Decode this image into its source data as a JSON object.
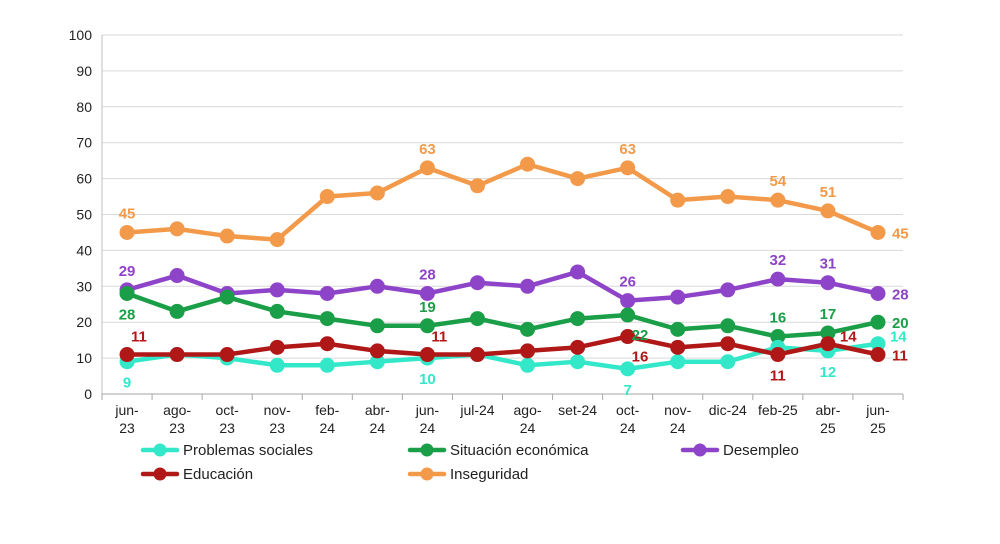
{
  "chart_data": {
    "type": "line",
    "title": "",
    "xlabel": "",
    "ylabel": "",
    "ylim": [
      0,
      100
    ],
    "yticks": [
      0,
      10,
      20,
      30,
      40,
      50,
      60,
      70,
      80,
      90,
      100
    ],
    "grid": true,
    "legend_position": "bottom",
    "categories": [
      [
        "jun-",
        "23"
      ],
      [
        "ago-",
        "23"
      ],
      [
        "oct-",
        "23"
      ],
      [
        "nov-",
        "23"
      ],
      [
        "feb-",
        "24"
      ],
      [
        "abr-",
        "24"
      ],
      [
        "jun-",
        "24"
      ],
      [
        "jul-24",
        ""
      ],
      [
        "ago-",
        "24"
      ],
      [
        "set-24",
        ""
      ],
      [
        "oct-",
        "24"
      ],
      [
        "nov-",
        "24"
      ],
      [
        "dic-24",
        ""
      ],
      [
        "feb-25",
        ""
      ],
      [
        "abr-",
        "25"
      ],
      [
        "jun-",
        "25"
      ]
    ],
    "series": [
      {
        "name": "Inseguridad",
        "color": "#F39A4A",
        "values": [
          45,
          46,
          44,
          43,
          55,
          56,
          63,
          58,
          64,
          60,
          63,
          54,
          55,
          54,
          51,
          45
        ],
        "labels": [
          {
            "index": 0,
            "text": "45",
            "pos": "above"
          },
          {
            "index": 6,
            "text": "63",
            "pos": "above"
          },
          {
            "index": 10,
            "text": "63",
            "pos": "above"
          },
          {
            "index": 13,
            "text": "54",
            "pos": "above"
          },
          {
            "index": 14,
            "text": "51",
            "pos": "above"
          },
          {
            "index": 15,
            "text": "45",
            "pos": "right"
          }
        ]
      },
      {
        "name": "Desempleo",
        "color": "#8E44C8",
        "values": [
          29,
          33,
          28,
          29,
          28,
          30,
          28,
          31,
          30,
          34,
          26,
          27,
          29,
          32,
          31,
          28
        ],
        "labels": [
          {
            "index": 0,
            "text": "29",
            "pos": "above"
          },
          {
            "index": 6,
            "text": "28",
            "pos": "above"
          },
          {
            "index": 10,
            "text": "26",
            "pos": "above"
          },
          {
            "index": 13,
            "text": "32",
            "pos": "above"
          },
          {
            "index": 14,
            "text": "31",
            "pos": "above"
          },
          {
            "index": 15,
            "text": "28",
            "pos": "right"
          }
        ]
      },
      {
        "name": "Situación económica",
        "color": "#1A9E47",
        "values": [
          28,
          23,
          27,
          23,
          21,
          19,
          19,
          21,
          18,
          21,
          22,
          18,
          19,
          16,
          17,
          20
        ],
        "labels": [
          {
            "index": 0,
            "text": "28",
            "pos": "below"
          },
          {
            "index": 6,
            "text": "19",
            "pos": "above"
          },
          {
            "index": 10,
            "text": "22",
            "pos": "belowright"
          },
          {
            "index": 13,
            "text": "16",
            "pos": "above"
          },
          {
            "index": 14,
            "text": "17",
            "pos": "above"
          },
          {
            "index": 15,
            "text": "20",
            "pos": "right"
          }
        ]
      },
      {
        "name": "Problemas sociales",
        "color": "#33E8C8",
        "values": [
          9,
          11,
          10,
          8,
          8,
          9,
          10,
          11,
          8,
          9,
          7,
          9,
          9,
          13,
          12,
          14
        ],
        "labels": [
          {
            "index": 0,
            "text": "9",
            "pos": "below"
          },
          {
            "index": 6,
            "text": "10",
            "pos": "below"
          },
          {
            "index": 10,
            "text": "7",
            "pos": "below"
          },
          {
            "index": 14,
            "text": "12",
            "pos": "below"
          },
          {
            "index": 15,
            "text": "14",
            "pos": "rightup"
          }
        ]
      },
      {
        "name": "Educación",
        "color": "#B01818",
        "values": [
          11,
          11,
          11,
          13,
          14,
          12,
          11,
          11,
          12,
          13,
          16,
          13,
          14,
          11,
          14,
          11
        ],
        "labels": [
          {
            "index": 0,
            "text": "11",
            "pos": "aboveright"
          },
          {
            "index": 6,
            "text": "11",
            "pos": "aboveright"
          },
          {
            "index": 10,
            "text": "16",
            "pos": "belowright"
          },
          {
            "index": 13,
            "text": "11",
            "pos": "below"
          },
          {
            "index": 14,
            "text": "14",
            "pos": "rightup"
          },
          {
            "index": 15,
            "text": "11",
            "pos": "right"
          }
        ]
      }
    ],
    "legend": [
      {
        "name": "Problemas sociales",
        "color": "#33E8C8"
      },
      {
        "name": "Situación económica",
        "color": "#1A9E47"
      },
      {
        "name": "Desempleo",
        "color": "#8E44C8"
      },
      {
        "name": "Educación",
        "color": "#B01818"
      },
      {
        "name": "Inseguridad",
        "color": "#F39A4A"
      }
    ]
  }
}
